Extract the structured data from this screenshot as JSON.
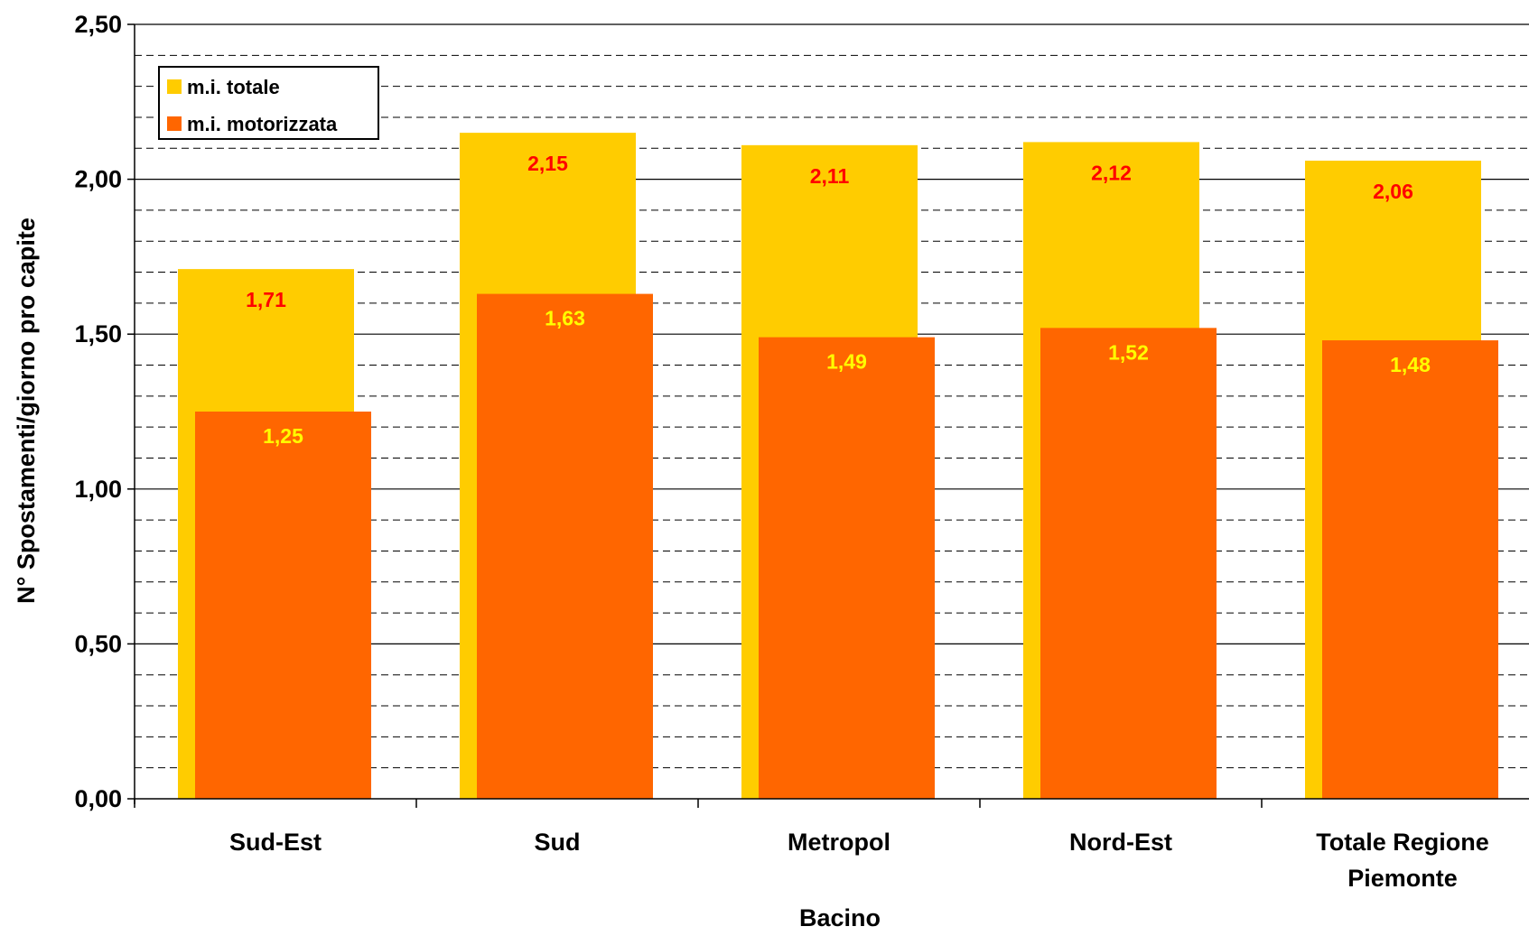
{
  "chart_data": {
    "type": "bar",
    "title": "",
    "xlabel": "Bacino",
    "ylabel": "N° Spostamenti/giorno pro capite",
    "categories": [
      [
        "Sud-Est"
      ],
      [
        "Sud"
      ],
      [
        "Metropol"
      ],
      [
        "Nord-Est"
      ],
      [
        "Totale Regione",
        "Piemonte"
      ]
    ],
    "series": [
      {
        "name": "m.i. totale",
        "color": "#FFCC00",
        "label_color": "#FF0000",
        "values": [
          1.71,
          2.15,
          2.11,
          2.12,
          2.06
        ],
        "value_labels": [
          "1,71",
          "2,15",
          "2,11",
          "2,12",
          "2,06"
        ]
      },
      {
        "name": "m.i. motorizzata",
        "color": "#FF6600",
        "label_color": "#FFFF00",
        "values": [
          1.25,
          1.63,
          1.49,
          1.52,
          1.48
        ],
        "value_labels": [
          "1,25",
          "1,63",
          "1,49",
          "1,52",
          "1,48"
        ]
      }
    ],
    "ylim": [
      0,
      2.5
    ],
    "yticks": [
      0,
      0.5,
      1.0,
      1.5,
      2.0,
      2.5
    ],
    "ytick_labels": [
      "0,00",
      "0,50",
      "1,00",
      "1,50",
      "2,00",
      "2,50"
    ],
    "minor_grid_step": 0.1,
    "grid": true,
    "legend_position": "top-left"
  }
}
